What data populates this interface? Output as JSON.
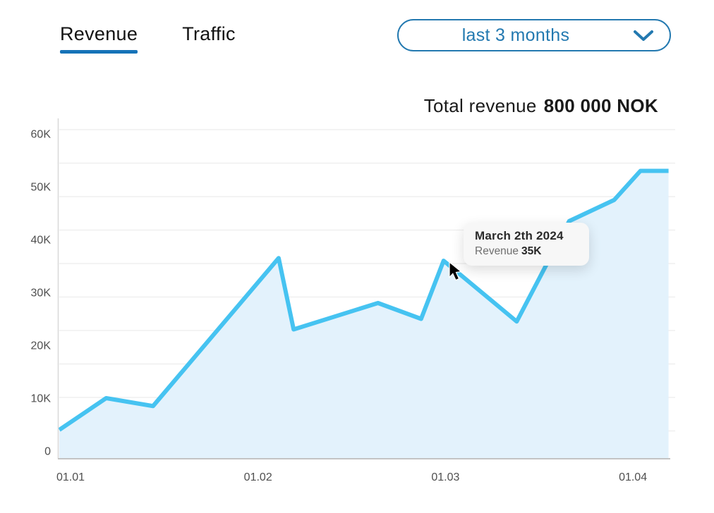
{
  "header": {
    "tabs": [
      {
        "label": "Revenue",
        "active": true
      },
      {
        "label": "Traffic",
        "active": false
      }
    ],
    "dropdown": {
      "value": "last 3 months"
    }
  },
  "title": {
    "prefix": "Total revenue",
    "value": "800 000 NOK"
  },
  "chart_data": {
    "type": "area",
    "title": "Total revenue 800 000 NOK",
    "xlabel": "",
    "ylabel": "",
    "ylim": [
      0,
      64
    ],
    "grid": "horizontal",
    "legend": false,
    "x_ticks": [
      {
        "x": 0,
        "label": "01.01"
      },
      {
        "x": 1,
        "label": "01.02"
      },
      {
        "x": 2,
        "label": "01.03"
      },
      {
        "x": 3,
        "label": "01.04"
      }
    ],
    "y_ticks": [
      {
        "y": 60,
        "label": "60K"
      },
      {
        "y": 50,
        "label": "50K"
      },
      {
        "y": 40,
        "label": "40K"
      },
      {
        "y": 30,
        "label": "30K"
      },
      {
        "y": 20,
        "label": "20K"
      },
      {
        "y": 10,
        "label": "10K"
      },
      {
        "y": 0,
        "label": "0"
      }
    ],
    "points": [
      {
        "x": -0.06,
        "y": 4
      },
      {
        "x": 0.19,
        "y": 10
      },
      {
        "x": 0.44,
        "y": 8.5
      },
      {
        "x": 1.11,
        "y": 36.5
      },
      {
        "x": 1.19,
        "y": 23
      },
      {
        "x": 1.64,
        "y": 28
      },
      {
        "x": 1.87,
        "y": 25
      },
      {
        "x": 1.99,
        "y": 36
      },
      {
        "x": 2.38,
        "y": 24.5
      },
      {
        "x": 2.66,
        "y": 43.5
      },
      {
        "x": 2.9,
        "y": 47.5
      },
      {
        "x": 3.04,
        "y": 53
      },
      {
        "x": 3.19,
        "y": 53
      }
    ],
    "tooltip": {
      "title": "March 2th 2024",
      "label": "Revenue",
      "value": "35K"
    },
    "colors": {
      "line": "#46c3f1",
      "fill": "#e3f2fc",
      "grid": "#efefef",
      "axis_y": "#d9d9d9",
      "axis_x": "#c4c4c4",
      "tick_text": "#4f4f4f"
    }
  },
  "colors": {
    "accent": "#1673b8",
    "dropdown_blue": "#2379b0"
  }
}
